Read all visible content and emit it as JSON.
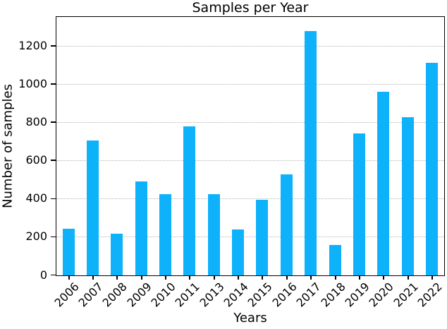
{
  "chart_data": {
    "type": "bar",
    "title": "Samples per Year",
    "xlabel": "Years",
    "ylabel": "Number of samples",
    "categories": [
      "2006",
      "2007",
      "2008",
      "2009",
      "2010",
      "2011",
      "2013",
      "2014",
      "2015",
      "2016",
      "2017",
      "2018",
      "2019",
      "2020",
      "2021",
      "2022"
    ],
    "values": [
      246,
      708,
      220,
      492,
      425,
      782,
      427,
      242,
      397,
      528,
      1281,
      158,
      742,
      960,
      829,
      1112
    ],
    "ylim": [
      0,
      1350
    ],
    "yticks": [
      0,
      200,
      400,
      600,
      800,
      1000,
      1200
    ],
    "bar_color": "#0db2fb",
    "grid": true,
    "grid_style": "dotted",
    "grid_color": "#b3b3b3",
    "legend_position": "none"
  }
}
